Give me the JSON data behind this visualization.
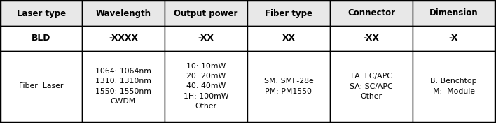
{
  "headers_row1": [
    "Laser type",
    "Wavelength",
    "Output power",
    "Fiber type",
    "Connector",
    "Dimension"
  ],
  "headers_row2": [
    "BLD",
    "-XXXX",
    "-XX",
    "XX",
    "-XX",
    "-X"
  ],
  "data_rows": [
    [
      "Fiber  Laser",
      "1064: 1064nm\n1310: 1310nm\n1550: 1550nm\nCWDM",
      "10: 10mW\n20: 20mW\n40: 40mW\n1H: 100mW\nOther",
      "SM: SMF-28e\nPM: PM1550",
      "FA: FC/APC\nSA: SC/APC\nOther",
      "B: Benchtop\nM:  Module"
    ]
  ],
  "col_rights": [
    117,
    235,
    353,
    471,
    589,
    706
  ],
  "col_lefts": [
    1,
    117,
    235,
    353,
    471,
    589
  ],
  "row_bottoms": [
    1,
    37,
    73,
    174
  ],
  "header1_bg": "#e8e8e8",
  "header2_bg": "#ffffff",
  "data_bg": "#ffffff",
  "border_color": "#000000",
  "text_color": "#000000",
  "font_size": 7.8,
  "header1_font_size": 8.5,
  "header2_font_size": 8.8,
  "fig_width": 7.08,
  "fig_height": 1.76,
  "dpi": 100
}
